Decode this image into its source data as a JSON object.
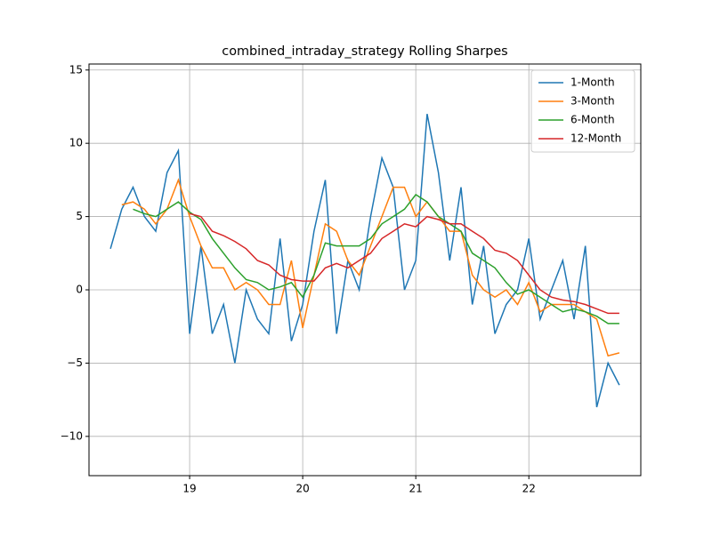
{
  "chart_data": {
    "type": "line",
    "title": "combined_intraday_strategy Rolling Sharpes",
    "x": [
      18.3,
      18.4,
      18.5,
      18.6,
      18.7,
      18.8,
      18.9,
      19.0,
      19.1,
      19.2,
      19.3,
      19.4,
      19.5,
      19.6,
      19.7,
      19.8,
      19.9,
      20.0,
      20.1,
      20.2,
      20.3,
      20.4,
      20.5,
      20.6,
      20.7,
      20.8,
      20.9,
      21.0,
      21.1,
      21.2,
      21.3,
      21.4,
      21.5,
      21.6,
      21.7,
      21.8,
      21.9,
      22.0,
      22.1,
      22.2,
      22.3,
      22.4,
      22.5,
      22.6,
      22.7,
      22.8
    ],
    "series": [
      {
        "name": "1-Month",
        "color": "#1f77b4",
        "values": [
          2.8,
          5.5,
          7,
          5,
          4,
          8,
          9.5,
          -3,
          3,
          -3,
          -1,
          -5,
          0,
          -2,
          -3,
          3.5,
          -3.5,
          -1,
          4,
          7.5,
          -3,
          2,
          0,
          5,
          9,
          7,
          0,
          2,
          12,
          8,
          2,
          7,
          -1,
          3,
          -3,
          -1,
          0,
          3.5,
          -2,
          0,
          2,
          -2,
          3,
          -8,
          -5,
          -6.5
        ]
      },
      {
        "name": "3-Month",
        "color": "#ff7f0e",
        "values": [
          null,
          5.8,
          6,
          5.5,
          4.5,
          5.5,
          7.5,
          5,
          3,
          1.5,
          1.5,
          0,
          0.5,
          0,
          -1,
          -1,
          2,
          -2.6,
          1,
          4.5,
          4,
          2,
          1,
          3,
          5,
          7,
          7,
          5,
          6,
          5,
          4,
          4,
          1,
          0,
          -0.5,
          0,
          -1,
          0.5,
          -1.5,
          -1,
          -1,
          -1,
          -1.5,
          -2,
          -4.5,
          -4.3
        ]
      },
      {
        "name": "6-Month",
        "color": "#2ca02c",
        "values": [
          null,
          null,
          5.5,
          5.2,
          5,
          5.5,
          6,
          5.3,
          4.8,
          3.5,
          2.5,
          1.5,
          0.7,
          0.5,
          0,
          0.2,
          0.5,
          -0.5,
          1,
          3.2,
          3,
          3,
          3,
          3.5,
          4.5,
          5,
          5.5,
          6.5,
          6,
          5,
          4.5,
          4,
          2.5,
          2,
          1.5,
          0.5,
          -0.3,
          0,
          -0.5,
          -1,
          -1.5,
          -1.3,
          -1.5,
          -1.8,
          -2.3,
          -2.3
        ]
      },
      {
        "name": "12-Month",
        "color": "#d62728",
        "values": [
          null,
          null,
          null,
          null,
          null,
          null,
          null,
          5.2,
          5,
          4,
          3.7,
          3.3,
          2.8,
          2,
          1.7,
          1,
          0.7,
          0.6,
          0.6,
          1.5,
          1.8,
          1.5,
          2,
          2.5,
          3.5,
          4,
          4.5,
          4.3,
          5,
          4.8,
          4.5,
          4.5,
          4,
          3.5,
          2.7,
          2.5,
          2,
          1,
          0,
          -0.5,
          -0.7,
          -0.8,
          -1,
          -1.3,
          -1.6,
          -1.6
        ]
      }
    ],
    "xlim": [
      18.11,
      22.99
    ],
    "ylim": [
      -12.68,
      15.41
    ],
    "xticks": [
      19,
      20,
      21,
      22
    ],
    "yticks": [
      {
        "value": -10,
        "label": "−10"
      },
      {
        "value": -5,
        "label": "−5"
      },
      0,
      5,
      10,
      15
    ],
    "grid": true,
    "legend": "upper right"
  }
}
